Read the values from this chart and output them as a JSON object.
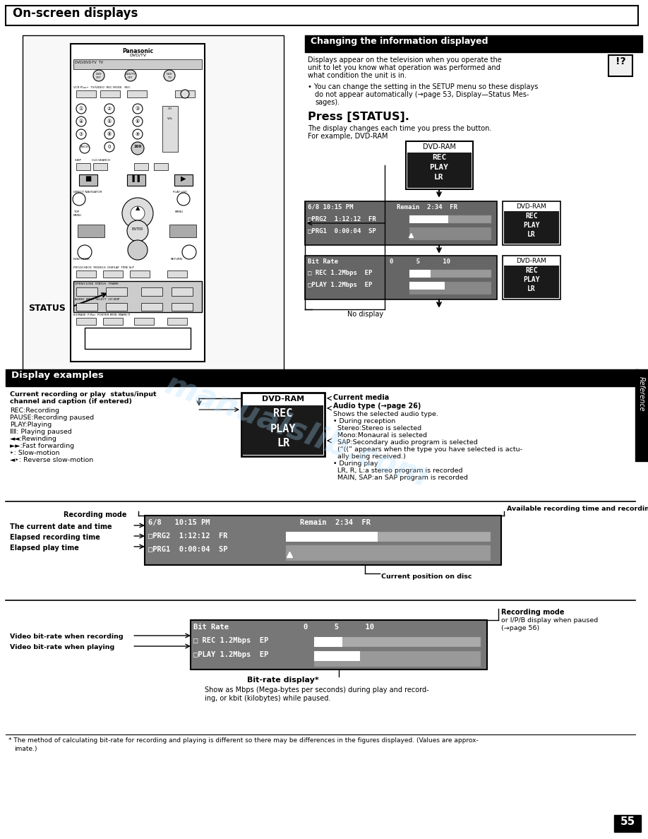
{
  "page_title": "On-screen displays",
  "section1_title": "Changing the information displayed",
  "press_status": "Press [STATUS].",
  "section2_title": "Display examples",
  "current_media_label": "Current media",
  "audio_type_label": "Audio type (→page 26)",
  "recording_mode_label": "Recording mode",
  "date_time_label": "The current date and time",
  "elapsed_rec_label": "Elapsed recording time",
  "elapsed_play_label": "Elapsed play time",
  "avail_rec_label": "Available recording time and recording mode",
  "cur_pos_label": "Current position on disc",
  "rec_mode_label2": "Recording mode",
  "video_rec_label": "Video bit-rate when recording",
  "video_play_label": "Video bit-rate when playing",
  "bitrate_label": "Bit-rate display*",
  "page_number": "55",
  "reference_label": "Reference",
  "bg_color": "#ffffff"
}
